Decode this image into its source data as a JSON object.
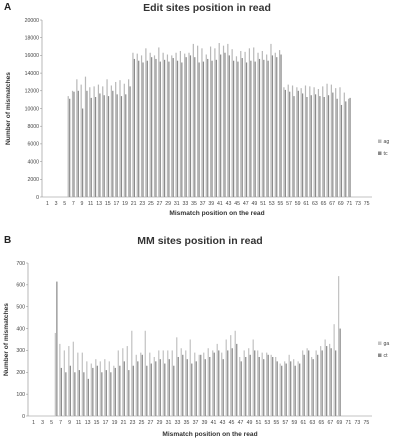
{
  "chart_data": [
    {
      "panel": "A",
      "type": "bar",
      "title": "Edit sites position in read",
      "xlabel": "Mismatch position on the read",
      "ylabel": "Number of mismatches",
      "ylim": [
        0,
        20000
      ],
      "yticks": [
        0,
        2000,
        4000,
        6000,
        8000,
        10000,
        12000,
        14000,
        16000,
        18000,
        20000
      ],
      "xticks": [
        "1",
        "3",
        "5",
        "7",
        "9",
        "11",
        "13",
        "15",
        "17",
        "19",
        "21",
        "23",
        "25",
        "27",
        "29",
        "31",
        "33",
        "35",
        "37",
        "39",
        "41",
        "43",
        "45",
        "47",
        "49",
        "51",
        "53",
        "55",
        "57",
        "59",
        "61",
        "63",
        "65",
        "67",
        "69",
        "71",
        "73",
        "75"
      ],
      "legend_position": "right",
      "grid": false,
      "x": [
        1,
        2,
        3,
        4,
        5,
        6,
        7,
        8,
        9,
        10,
        11,
        12,
        13,
        14,
        15,
        16,
        17,
        18,
        19,
        20,
        21,
        22,
        23,
        24,
        25,
        26,
        27,
        28,
        29,
        30,
        31,
        32,
        33,
        34,
        35,
        36,
        37,
        38,
        39,
        40,
        41,
        42,
        43,
        44,
        45,
        46,
        47,
        48,
        49,
        50,
        51,
        52,
        53,
        54,
        55,
        56,
        57,
        58,
        59,
        60,
        61,
        62,
        63,
        64,
        65,
        66,
        67,
        68,
        69,
        70,
        71,
        72,
        73,
        74,
        75
      ],
      "series": [
        {
          "name": "ag",
          "color": "#b8b8b8",
          "values": [
            0,
            0,
            0,
            0,
            0,
            11400,
            12000,
            13300,
            12700,
            13600,
            12400,
            12500,
            12700,
            12500,
            13300,
            12600,
            13000,
            13200,
            12800,
            13300,
            16300,
            16200,
            16000,
            16800,
            16300,
            16000,
            16900,
            16300,
            16100,
            16000,
            16300,
            16500,
            16200,
            16300,
            17300,
            17100,
            16800,
            16100,
            17000,
            16800,
            17400,
            17100,
            17300,
            16700,
            15900,
            16500,
            16400,
            16800,
            16900,
            16300,
            16500,
            16100,
            17300,
            16300,
            16600,
            12400,
            12700,
            12600,
            12400,
            12300,
            12600,
            12500,
            12400,
            12200,
            12500,
            12800,
            12700,
            12300,
            12400,
            11800,
            11100,
            0,
            0,
            0,
            0
          ]
        },
        {
          "name": "tc",
          "color": "#8a8a8a",
          "values": [
            0,
            0,
            0,
            0,
            0,
            11100,
            11900,
            12000,
            10000,
            12000,
            11200,
            11300,
            11700,
            11500,
            11400,
            12000,
            11600,
            11400,
            11600,
            12500,
            15600,
            15400,
            15200,
            15400,
            15800,
            15600,
            15300,
            15500,
            15300,
            15700,
            15400,
            15200,
            15800,
            16000,
            15800,
            15200,
            15300,
            15600,
            15400,
            15500,
            16100,
            16300,
            16000,
            15400,
            15300,
            15700,
            15200,
            15400,
            15300,
            15600,
            15500,
            15400,
            16000,
            15800,
            16100,
            12100,
            11900,
            11400,
            12000,
            11700,
            11300,
            11500,
            11600,
            11400,
            11300,
            11500,
            11800,
            11100,
            10400,
            10800,
            11200,
            0,
            0,
            0,
            0
          ]
        }
      ]
    },
    {
      "panel": "B",
      "type": "bar",
      "title": "MM sites position in read",
      "xlabel": "Mismatch position on the read",
      "ylabel": "Number of mismatches",
      "ylim": [
        0,
        700
      ],
      "yticks": [
        0,
        100,
        200,
        300,
        400,
        500,
        600,
        700
      ],
      "xticks": [
        "1",
        "3",
        "5",
        "7",
        "9",
        "11",
        "13",
        "15",
        "17",
        "19",
        "21",
        "23",
        "25",
        "27",
        "29",
        "31",
        "33",
        "35",
        "37",
        "39",
        "41",
        "43",
        "45",
        "47",
        "49",
        "51",
        "53",
        "55",
        "57",
        "59",
        "61",
        "63",
        "65",
        "67",
        "69",
        "71",
        "73",
        "75"
      ],
      "legend_position": "right",
      "grid": false,
      "x": [
        1,
        2,
        3,
        4,
        5,
        6,
        7,
        8,
        9,
        10,
        11,
        12,
        13,
        14,
        15,
        16,
        17,
        18,
        19,
        20,
        21,
        22,
        23,
        24,
        25,
        26,
        27,
        28,
        29,
        30,
        31,
        32,
        33,
        34,
        35,
        36,
        37,
        38,
        39,
        40,
        41,
        42,
        43,
        44,
        45,
        46,
        47,
        48,
        49,
        50,
        51,
        52,
        53,
        54,
        55,
        56,
        57,
        58,
        59,
        60,
        61,
        62,
        63,
        64,
        65,
        66,
        67,
        68,
        69,
        70,
        71,
        72,
        73,
        74,
        75
      ],
      "series": [
        {
          "name": "ga",
          "color": "#c4c4c4",
          "values": [
            0,
            0,
            0,
            0,
            0,
            380,
            330,
            300,
            320,
            340,
            290,
            290,
            250,
            240,
            260,
            250,
            260,
            250,
            230,
            300,
            310,
            320,
            390,
            280,
            290,
            390,
            290,
            270,
            300,
            300,
            300,
            300,
            360,
            310,
            300,
            350,
            290,
            280,
            290,
            310,
            300,
            330,
            290,
            350,
            370,
            390,
            270,
            300,
            310,
            350,
            300,
            290,
            290,
            280,
            270,
            240,
            250,
            280,
            260,
            250,
            300,
            310,
            270,
            300,
            320,
            350,
            330,
            420,
            640,
            0,
            0,
            0,
            0,
            0,
            0
          ]
        },
        {
          "name": "ct",
          "color": "#8c8c8c",
          "values": [
            0,
            0,
            0,
            0,
            0,
            615,
            220,
            200,
            230,
            200,
            210,
            200,
            170,
            220,
            230,
            200,
            210,
            200,
            220,
            230,
            250,
            210,
            230,
            250,
            280,
            230,
            240,
            250,
            260,
            240,
            260,
            230,
            270,
            280,
            260,
            240,
            250,
            280,
            260,
            270,
            290,
            300,
            260,
            300,
            310,
            330,
            250,
            270,
            280,
            300,
            270,
            260,
            280,
            270,
            250,
            230,
            240,
            250,
            230,
            240,
            280,
            300,
            260,
            280,
            300,
            320,
            310,
            300,
            400,
            0,
            0,
            0,
            0,
            0,
            0
          ]
        }
      ]
    }
  ]
}
